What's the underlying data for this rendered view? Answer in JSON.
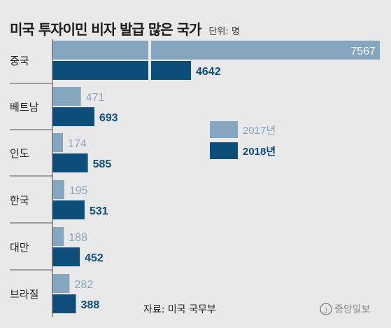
{
  "chart_data": {
    "type": "bar",
    "orientation": "horizontal",
    "title": "미국 투자이민 비자 발급 많은 국가",
    "unit_label": "단위: 명",
    "categories": [
      "중국",
      "베트남",
      "인도",
      "한국",
      "대만",
      "브라질"
    ],
    "series": [
      {
        "name": "2017년",
        "color": "#86a6bf",
        "values": [
          7567,
          471,
          174,
          195,
          188,
          282
        ]
      },
      {
        "name": "2018년",
        "color": "#0d4e7a",
        "values": [
          4642,
          693,
          585,
          531,
          452,
          388
        ]
      }
    ],
    "axis_break_on_first_category": true,
    "legend_position": "right-middle",
    "grid": false
  },
  "source": "자료: 미국 국무부",
  "publisher": "중앙일보"
}
